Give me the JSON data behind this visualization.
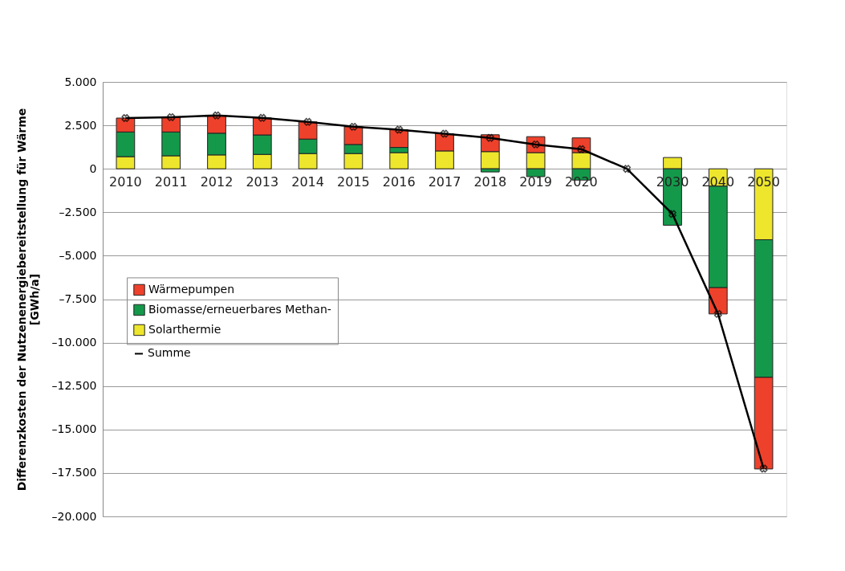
{
  "chart_data": {
    "type": "bar",
    "stacked": true,
    "ylabel": "Differenzkosten der Nutzenenergiebereitstellung für Wärme [GWh/a]",
    "categories": [
      "2010",
      "2011",
      "2012",
      "2013",
      "2014",
      "2015",
      "2016",
      "2017",
      "2018",
      "2019",
      "2020",
      null,
      "2030",
      "2040",
      "2050"
    ],
    "series": [
      {
        "name": "Solarthermie",
        "color": "#ede62c",
        "values": [
          700,
          750,
          800,
          830,
          880,
          880,
          930,
          1030,
          990,
          930,
          930,
          null,
          650,
          -1000,
          -4080
        ]
      },
      {
        "name": "Biomasse/erneuerbares Methan-",
        "color": "#14994a",
        "values": [
          1420,
          1370,
          1250,
          1120,
          830,
          520,
          300,
          null,
          -180,
          -450,
          -650,
          null,
          -3250,
          -5840,
          -7920
        ]
      },
      {
        "name": "Wärmepumpen",
        "color": "#ee412b",
        "values": [
          800,
          850,
          1020,
          980,
          990,
          1020,
          1020,
          990,
          970,
          920,
          850,
          null,
          null,
          -1510,
          -5270
        ]
      },
      {
        "name": "Summe",
        "type": "line",
        "color": "#000000",
        "marker": "cross",
        "values": [
          2920,
          2970,
          3070,
          2930,
          2700,
          2420,
          2250,
          2020,
          1780,
          1400,
          1130,
          0,
          -2600,
          -8350,
          -17250
        ]
      }
    ],
    "ylim": [
      -20000,
      5000
    ],
    "yticks": [
      {
        "value": -20000,
        "label": "–20.000"
      },
      {
        "value": -17500,
        "label": "–17.500"
      },
      {
        "value": -15000,
        "label": "–15.000"
      },
      {
        "value": -12500,
        "label": "–12.500"
      },
      {
        "value": -10000,
        "label": "–10.000"
      },
      {
        "value": -7500,
        "label": "–7.500"
      },
      {
        "value": -5000,
        "label": "–5.000"
      },
      {
        "value": -2500,
        "label": "–2.500"
      },
      0,
      {
        "value": 2500,
        "label": "2.500"
      },
      {
        "value": 5000,
        "label": "5.000"
      }
    ],
    "grid": "y",
    "legend": "left"
  }
}
